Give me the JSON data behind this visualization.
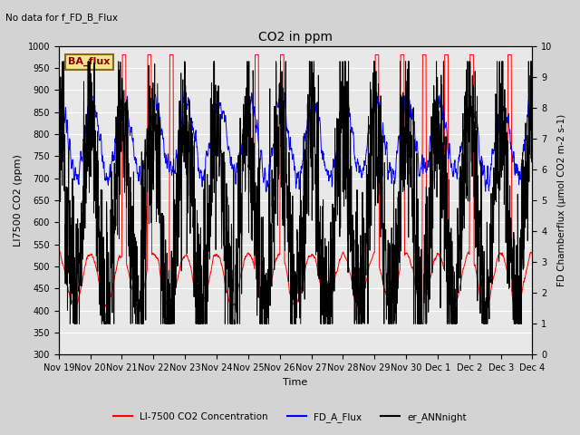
{
  "title": "CO2 in ppm",
  "top_left_text": "No data for f_FD_B_Flux",
  "ylabel_left": "LI7500 CO2 (ppm)",
  "ylabel_right": "FD Chamberflux (μmol CO2 m-2 s-1)",
  "xlabel": "Time",
  "ylim_left": [
    300,
    1000
  ],
  "ylim_right": [
    0.0,
    10.0
  ],
  "yticks_left": [
    300,
    350,
    400,
    450,
    500,
    550,
    600,
    650,
    700,
    750,
    800,
    850,
    900,
    950,
    1000
  ],
  "yticks_right": [
    0.0,
    1.0,
    2.0,
    3.0,
    4.0,
    5.0,
    6.0,
    7.0,
    8.0,
    9.0,
    10.0
  ],
  "xtick_labels": [
    "Nov 19",
    "Nov 20",
    "Nov 21",
    "Nov 22",
    "Nov 23",
    "Nov 24",
    "Nov 25",
    "Nov 26",
    "Nov 27",
    "Nov 28",
    "Nov 29",
    "Nov 30",
    "Dec 1",
    "Dec 2",
    "Dec 3",
    "Dec 4"
  ],
  "legend_entries": [
    "LI-7500 CO2 Concentration",
    "FD_A_Flux",
    "er_ANNnight"
  ],
  "legend_colors": [
    "red",
    "blue",
    "black"
  ],
  "box_label": "BA_flux",
  "box_facecolor": "#f0e68c",
  "box_edgecolor": "#8b6914",
  "background_color": "#d3d3d3",
  "axes_facecolor": "#e8e8e8",
  "grid_color": "white",
  "n_points": 2000,
  "seed": 42
}
